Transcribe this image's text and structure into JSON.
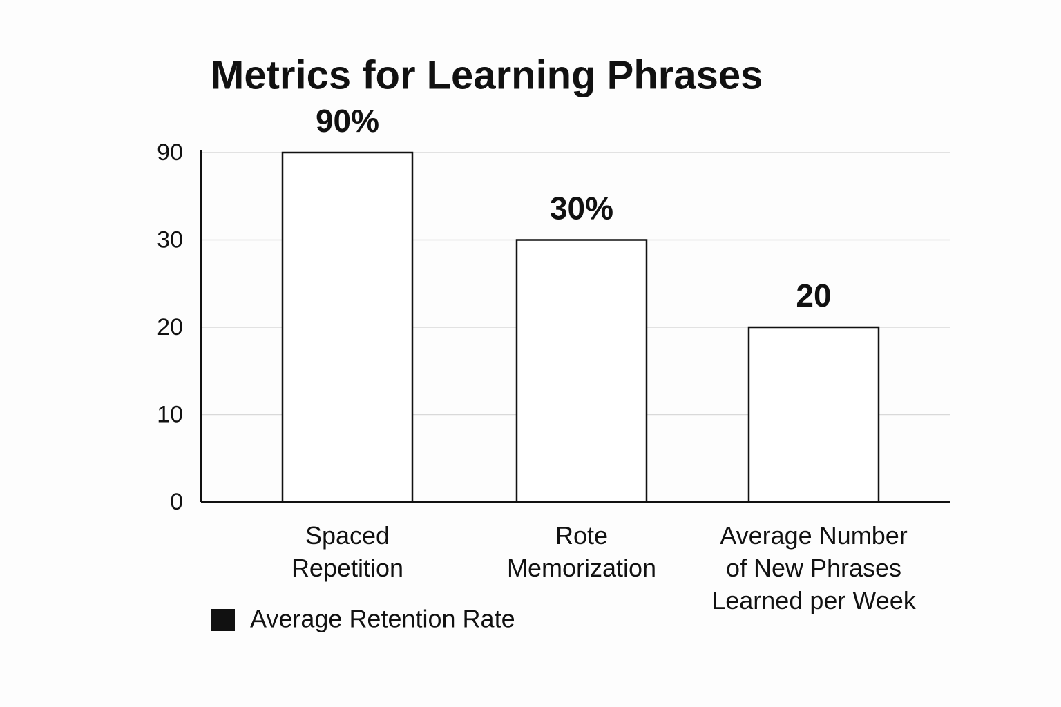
{
  "chart_data": {
    "type": "bar",
    "title": "Metrics for Learning Phrases",
    "categories": [
      "Spaced\nRepetition",
      "Rote\nMemorization",
      "Average Number\nof New Phrases\nLearned per Week"
    ],
    "series": [
      {
        "name": "Average Retention Rate",
        "color": "#111111",
        "values": [
          90,
          30,
          20
        ],
        "value_labels": [
          "90%",
          "30%",
          "20"
        ]
      }
    ],
    "ylim": [
      0,
      90
    ],
    "yticks": [
      0,
      10,
      20,
      30,
      90
    ],
    "grid": true,
    "legend": "bottom-left"
  }
}
